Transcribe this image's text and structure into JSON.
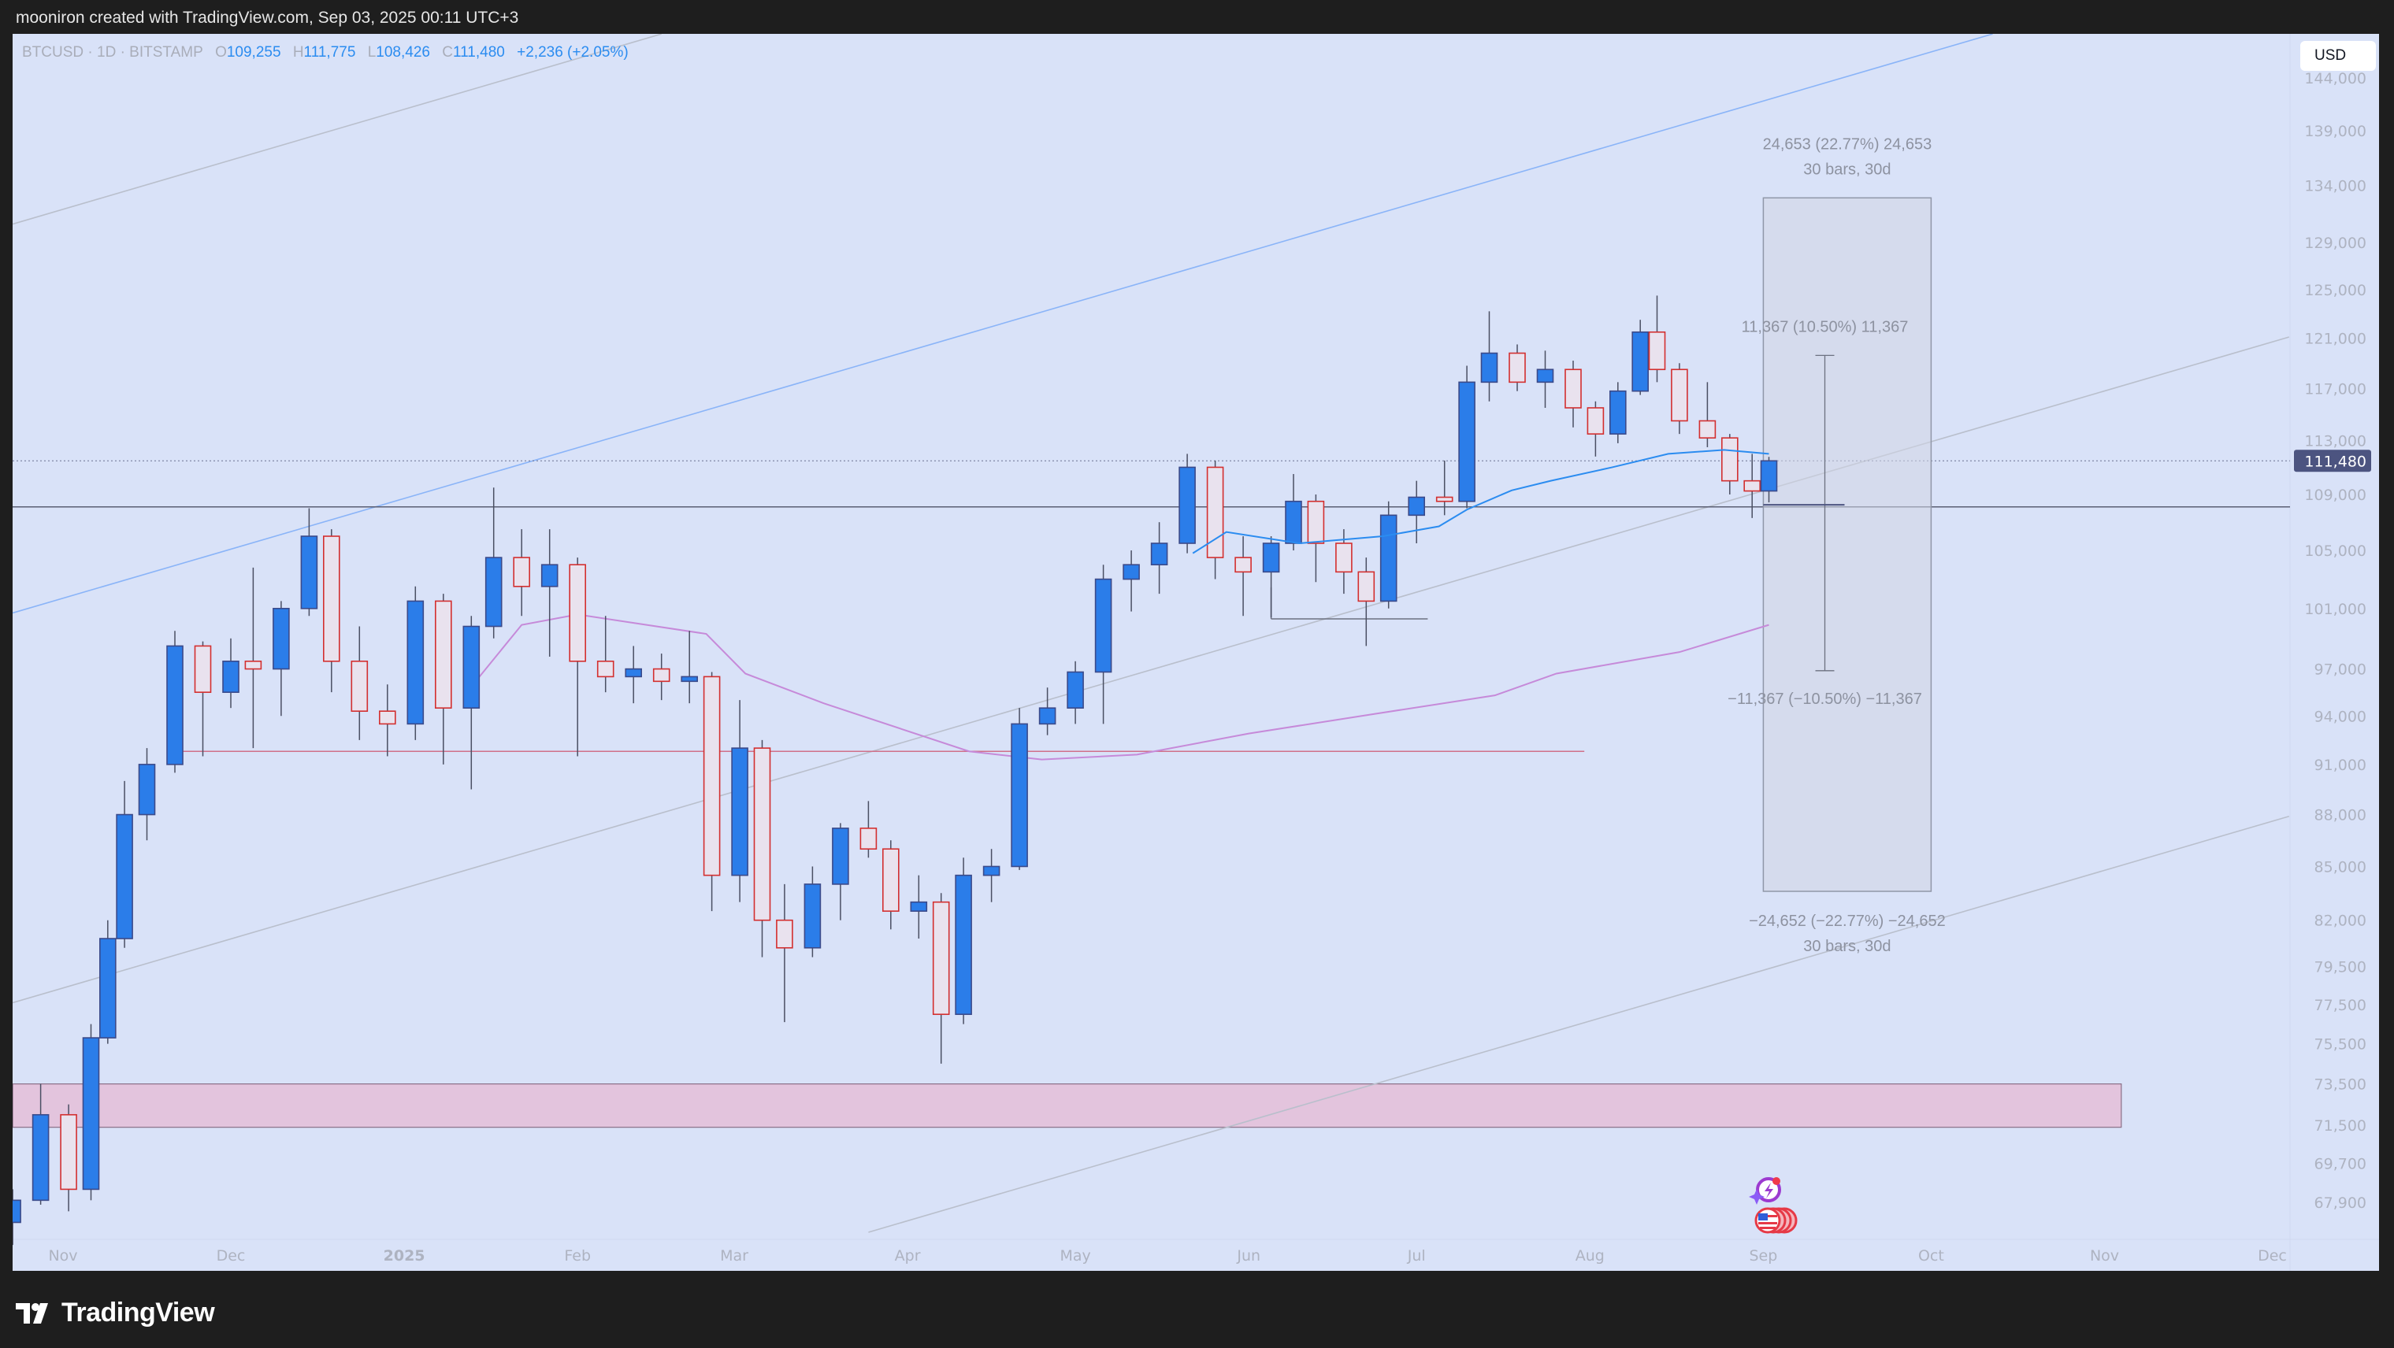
{
  "header": {
    "attribution": "mooniron created with TradingView.com, Sep 03, 2025 00:11 UTC+3"
  },
  "legend": {
    "symbol": "BTCUSD · 1D · BITSTAMP",
    "o_label": "O",
    "o": "109,255",
    "h_label": "H",
    "h": "111,775",
    "l_label": "L",
    "l": "108,426",
    "c_label": "C",
    "c": "111,480",
    "change": "+2,236 (+2.05%)"
  },
  "currency_button": "USD",
  "last_price_label": "111,480",
  "footer": {
    "brand": "TradingView"
  },
  "colors": {
    "background": "#d9e2f8",
    "up": "#2b7de9",
    "down": "#d32f2f",
    "ma_fast": "#2b8cf0",
    "ma_slow": "#c68ad9",
    "zone": "#e3c4dd",
    "support_line": "#d0708a",
    "channel_blue": "#8ab4f8",
    "channel_gray": "#b9bfcc"
  },
  "chart_data": {
    "type": "candlestick",
    "scale": "log",
    "ylim": [
      67000,
      145000
    ],
    "y_ticks": [
      144000,
      139000,
      134000,
      129000,
      125000,
      121000,
      117000,
      113000,
      109000,
      105000,
      101000,
      97000,
      94000,
      91000,
      88000,
      85000,
      82000,
      79500,
      77500,
      75500,
      73500,
      71500,
      69700,
      67900
    ],
    "y_tick_labels": [
      "144,000",
      "139,000",
      "134,000",
      "129,000",
      "125,000",
      "121,000",
      "117,000",
      "113,000",
      "109,000",
      "105,000",
      "101,000",
      "97,000",
      "94,000",
      "91,000",
      "88,000",
      "85,000",
      "82,000",
      "79,500",
      "77,500",
      "75,500",
      "73,500",
      "71,500",
      "69,700",
      "67,900"
    ],
    "x_ticks": [
      {
        "date": "2024-11-01",
        "label": "Nov"
      },
      {
        "date": "2024-12-01",
        "label": "Dec"
      },
      {
        "date": "2025-01-01",
        "label": "2025",
        "bold": true
      },
      {
        "date": "2025-02-01",
        "label": "Feb"
      },
      {
        "date": "2025-03-01",
        "label": "Mar"
      },
      {
        "date": "2025-04-01",
        "label": "Apr"
      },
      {
        "date": "2025-05-01",
        "label": "May"
      },
      {
        "date": "2025-06-01",
        "label": "Jun"
      },
      {
        "date": "2025-07-01",
        "label": "Jul"
      },
      {
        "date": "2025-08-01",
        "label": "Aug"
      },
      {
        "date": "2025-09-01",
        "label": "Sep"
      },
      {
        "date": "2025-10-01",
        "label": "Oct"
      },
      {
        "date": "2025-11-01",
        "label": "Nov"
      },
      {
        "date": "2025-12-01",
        "label": "Dec"
      }
    ],
    "candles_ohlc": [
      [
        "2024-10-23",
        67000,
        68500,
        66000,
        68000
      ],
      [
        "2024-10-28",
        68000,
        73500,
        67800,
        72000
      ],
      [
        "2024-11-02",
        72000,
        72500,
        67500,
        68500
      ],
      [
        "2024-11-06",
        68500,
        76500,
        68000,
        75800
      ],
      [
        "2024-11-09",
        75800,
        82000,
        75500,
        81000
      ],
      [
        "2024-11-12",
        81000,
        90000,
        80500,
        88000
      ],
      [
        "2024-11-16",
        88000,
        92000,
        86500,
        91000
      ],
      [
        "2024-11-21",
        91000,
        99500,
        90500,
        98500
      ],
      [
        "2024-11-26",
        98500,
        98800,
        91500,
        95500
      ],
      [
        "2024-12-01",
        95500,
        99000,
        94500,
        97500
      ],
      [
        "2024-12-05",
        97500,
        103800,
        92000,
        97000
      ],
      [
        "2024-12-10",
        97000,
        101500,
        94000,
        101000
      ],
      [
        "2024-12-15",
        101000,
        108000,
        100500,
        106000
      ],
      [
        "2024-12-19",
        106000,
        106500,
        95500,
        97500
      ],
      [
        "2024-12-24",
        97500,
        99800,
        92500,
        94300
      ],
      [
        "2024-12-29",
        94300,
        96000,
        91500,
        93500
      ],
      [
        "2025-01-03",
        93500,
        102500,
        92500,
        101500
      ],
      [
        "2025-01-08",
        101500,
        102000,
        91000,
        94500
      ],
      [
        "2025-01-13",
        94500,
        100500,
        89500,
        99800
      ],
      [
        "2025-01-17",
        99800,
        109500,
        99000,
        104500
      ],
      [
        "2025-01-22",
        104500,
        106500,
        100500,
        102500
      ],
      [
        "2025-01-27",
        102500,
        106500,
        97800,
        104000
      ],
      [
        "2025-02-01",
        104000,
        104500,
        91500,
        97500
      ],
      [
        "2025-02-06",
        97500,
        100500,
        95500,
        96500
      ],
      [
        "2025-02-11",
        96500,
        98500,
        94800,
        97000
      ],
      [
        "2025-02-16",
        97000,
        98000,
        95000,
        96200
      ],
      [
        "2025-02-21",
        96200,
        99500,
        94800,
        96500
      ],
      [
        "2025-02-25",
        96500,
        96800,
        82500,
        84500
      ],
      [
        "2025-03-02",
        84500,
        95000,
        83000,
        92000
      ],
      [
        "2025-03-06",
        92000,
        92500,
        80000,
        82000
      ],
      [
        "2025-03-10",
        82000,
        84000,
        76600,
        80500
      ],
      [
        "2025-03-15",
        80500,
        85000,
        80000,
        84000
      ],
      [
        "2025-03-20",
        84000,
        87500,
        82000,
        87200
      ],
      [
        "2025-03-25",
        87200,
        88800,
        85500,
        86000
      ],
      [
        "2025-03-29",
        86000,
        86500,
        81500,
        82500
      ],
      [
        "2025-04-03",
        82500,
        84500,
        81000,
        83000
      ],
      [
        "2025-04-07",
        83000,
        83500,
        74500,
        77000
      ],
      [
        "2025-04-11",
        77000,
        85500,
        76500,
        84500
      ],
      [
        "2025-04-16",
        84500,
        86000,
        83000,
        85000
      ],
      [
        "2025-04-21",
        85000,
        94500,
        84800,
        93500
      ],
      [
        "2025-04-26",
        93500,
        95800,
        92800,
        94500
      ],
      [
        "2025-05-01",
        94500,
        97500,
        93500,
        96800
      ],
      [
        "2025-05-06",
        96800,
        104000,
        93500,
        103000
      ],
      [
        "2025-05-11",
        103000,
        105000,
        100800,
        104000
      ],
      [
        "2025-05-16",
        104000,
        107000,
        102000,
        105500
      ],
      [
        "2025-05-21",
        105500,
        112000,
        104800,
        111000
      ],
      [
        "2025-05-26",
        111000,
        111500,
        103000,
        104500
      ],
      [
        "2025-05-31",
        104500,
        106000,
        100500,
        103500
      ],
      [
        "2025-06-05",
        103500,
        106000,
        100400,
        105500
      ],
      [
        "2025-06-09",
        105500,
        110500,
        105000,
        108500
      ],
      [
        "2025-06-13",
        108500,
        109000,
        102800,
        105500
      ],
      [
        "2025-06-18",
        105500,
        106500,
        102000,
        103500
      ],
      [
        "2025-06-22",
        103500,
        104500,
        98500,
        101500
      ],
      [
        "2025-06-26",
        101500,
        108500,
        101000,
        107500
      ],
      [
        "2025-07-01",
        107500,
        110000,
        105500,
        108800
      ],
      [
        "2025-07-06",
        108800,
        111500,
        107500,
        108500
      ],
      [
        "2025-07-10",
        108500,
        118800,
        108000,
        117500
      ],
      [
        "2025-07-14",
        117500,
        123200,
        116000,
        119800
      ],
      [
        "2025-07-19",
        119800,
        120500,
        116800,
        117500
      ],
      [
        "2025-07-24",
        117500,
        120000,
        115500,
        118500
      ],
      [
        "2025-07-29",
        118500,
        119200,
        114000,
        115500
      ],
      [
        "2025-08-02",
        115500,
        116000,
        111800,
        113500
      ],
      [
        "2025-08-06",
        113500,
        117500,
        112800,
        116800
      ],
      [
        "2025-08-10",
        116800,
        122500,
        116500,
        121500
      ],
      [
        "2025-08-13",
        121500,
        124500,
        117500,
        118500
      ],
      [
        "2025-08-17",
        118500,
        119000,
        113500,
        114500
      ],
      [
        "2025-08-22",
        114500,
        117500,
        112500,
        113200
      ],
      [
        "2025-08-26",
        113200,
        113500,
        109000,
        110000
      ],
      [
        "2025-08-30",
        110000,
        112000,
        107300,
        109255
      ],
      [
        "2025-09-02",
        109255,
        111775,
        108426,
        111480
      ]
    ],
    "ma_fast": [
      [
        "2025-05-22",
        104800
      ],
      [
        "2025-05-28",
        106300
      ],
      [
        "2025-06-10",
        105500
      ],
      [
        "2025-06-25",
        106000
      ],
      [
        "2025-07-05",
        106700
      ],
      [
        "2025-07-10",
        107900
      ],
      [
        "2025-07-18",
        109300
      ],
      [
        "2025-07-25",
        110000
      ],
      [
        "2025-08-05",
        111000
      ],
      [
        "2025-08-15",
        112000
      ],
      [
        "2025-08-25",
        112300
      ],
      [
        "2025-09-02",
        112000
      ]
    ],
    "ma_slow": [
      [
        "2025-01-14",
        96300
      ],
      [
        "2025-01-22",
        99900
      ],
      [
        "2025-02-01",
        100600
      ],
      [
        "2025-02-24",
        99300
      ],
      [
        "2025-03-03",
        96700
      ],
      [
        "2025-03-17",
        94800
      ],
      [
        "2025-04-12",
        91800
      ],
      [
        "2025-04-25",
        91300
      ],
      [
        "2025-05-12",
        91600
      ],
      [
        "2025-06-01",
        92900
      ],
      [
        "2025-06-23",
        94100
      ],
      [
        "2025-07-15",
        95300
      ],
      [
        "2025-07-26",
        96700
      ],
      [
        "2025-08-17",
        98100
      ],
      [
        "2025-09-02",
        99900
      ]
    ],
    "trend_lines": [
      {
        "style": "gray",
        "from": [
          "2024-10-23",
          130600
        ],
        "to": [
          "2025-02-16",
          148300
        ]
      },
      {
        "style": "blue",
        "from": [
          "2024-10-23",
          100700
        ],
        "to": [
          "2025-10-12",
          148300
        ]
      },
      {
        "style": "gray",
        "from": [
          "2024-10-23",
          77600
        ],
        "to": [
          "2025-12-04",
          121100
        ]
      },
      {
        "style": "gray",
        "from": [
          "2025-03-25",
          66560
        ],
        "to": [
          "2025-12-04",
          87900
        ]
      }
    ],
    "horizontal_lines": [
      {
        "style": "dark",
        "price": 108100
      },
      {
        "style": "red",
        "price": 91800,
        "from": "2024-11-20",
        "to": "2025-07-31"
      },
      {
        "style": "range",
        "price": 100300,
        "from": "2025-06-05",
        "to": "2025-07-03"
      }
    ],
    "zone": {
      "from": "2024-10-23",
      "to": "2025-11-04",
      "low": 71400,
      "high": 73500
    },
    "date_price_range": {
      "from": "2025-09-01",
      "to": "2025-10-01",
      "low": 83600,
      "high": 132906,
      "up_label": "24,653 (22.77%) 24,653",
      "up_bars": "30 bars, 30d",
      "down_label": "−24,652 (−22.77%) −24,652",
      "down_bars": "30 bars, 30d"
    },
    "price_range": {
      "date": "2025-09-12",
      "base": 108253,
      "high": 119620,
      "low": 96886,
      "up_label": "11,367 (10.50%) 11,367",
      "down_label": "−11,367 (−10.50%) −11,367"
    },
    "last_price": 111480
  }
}
